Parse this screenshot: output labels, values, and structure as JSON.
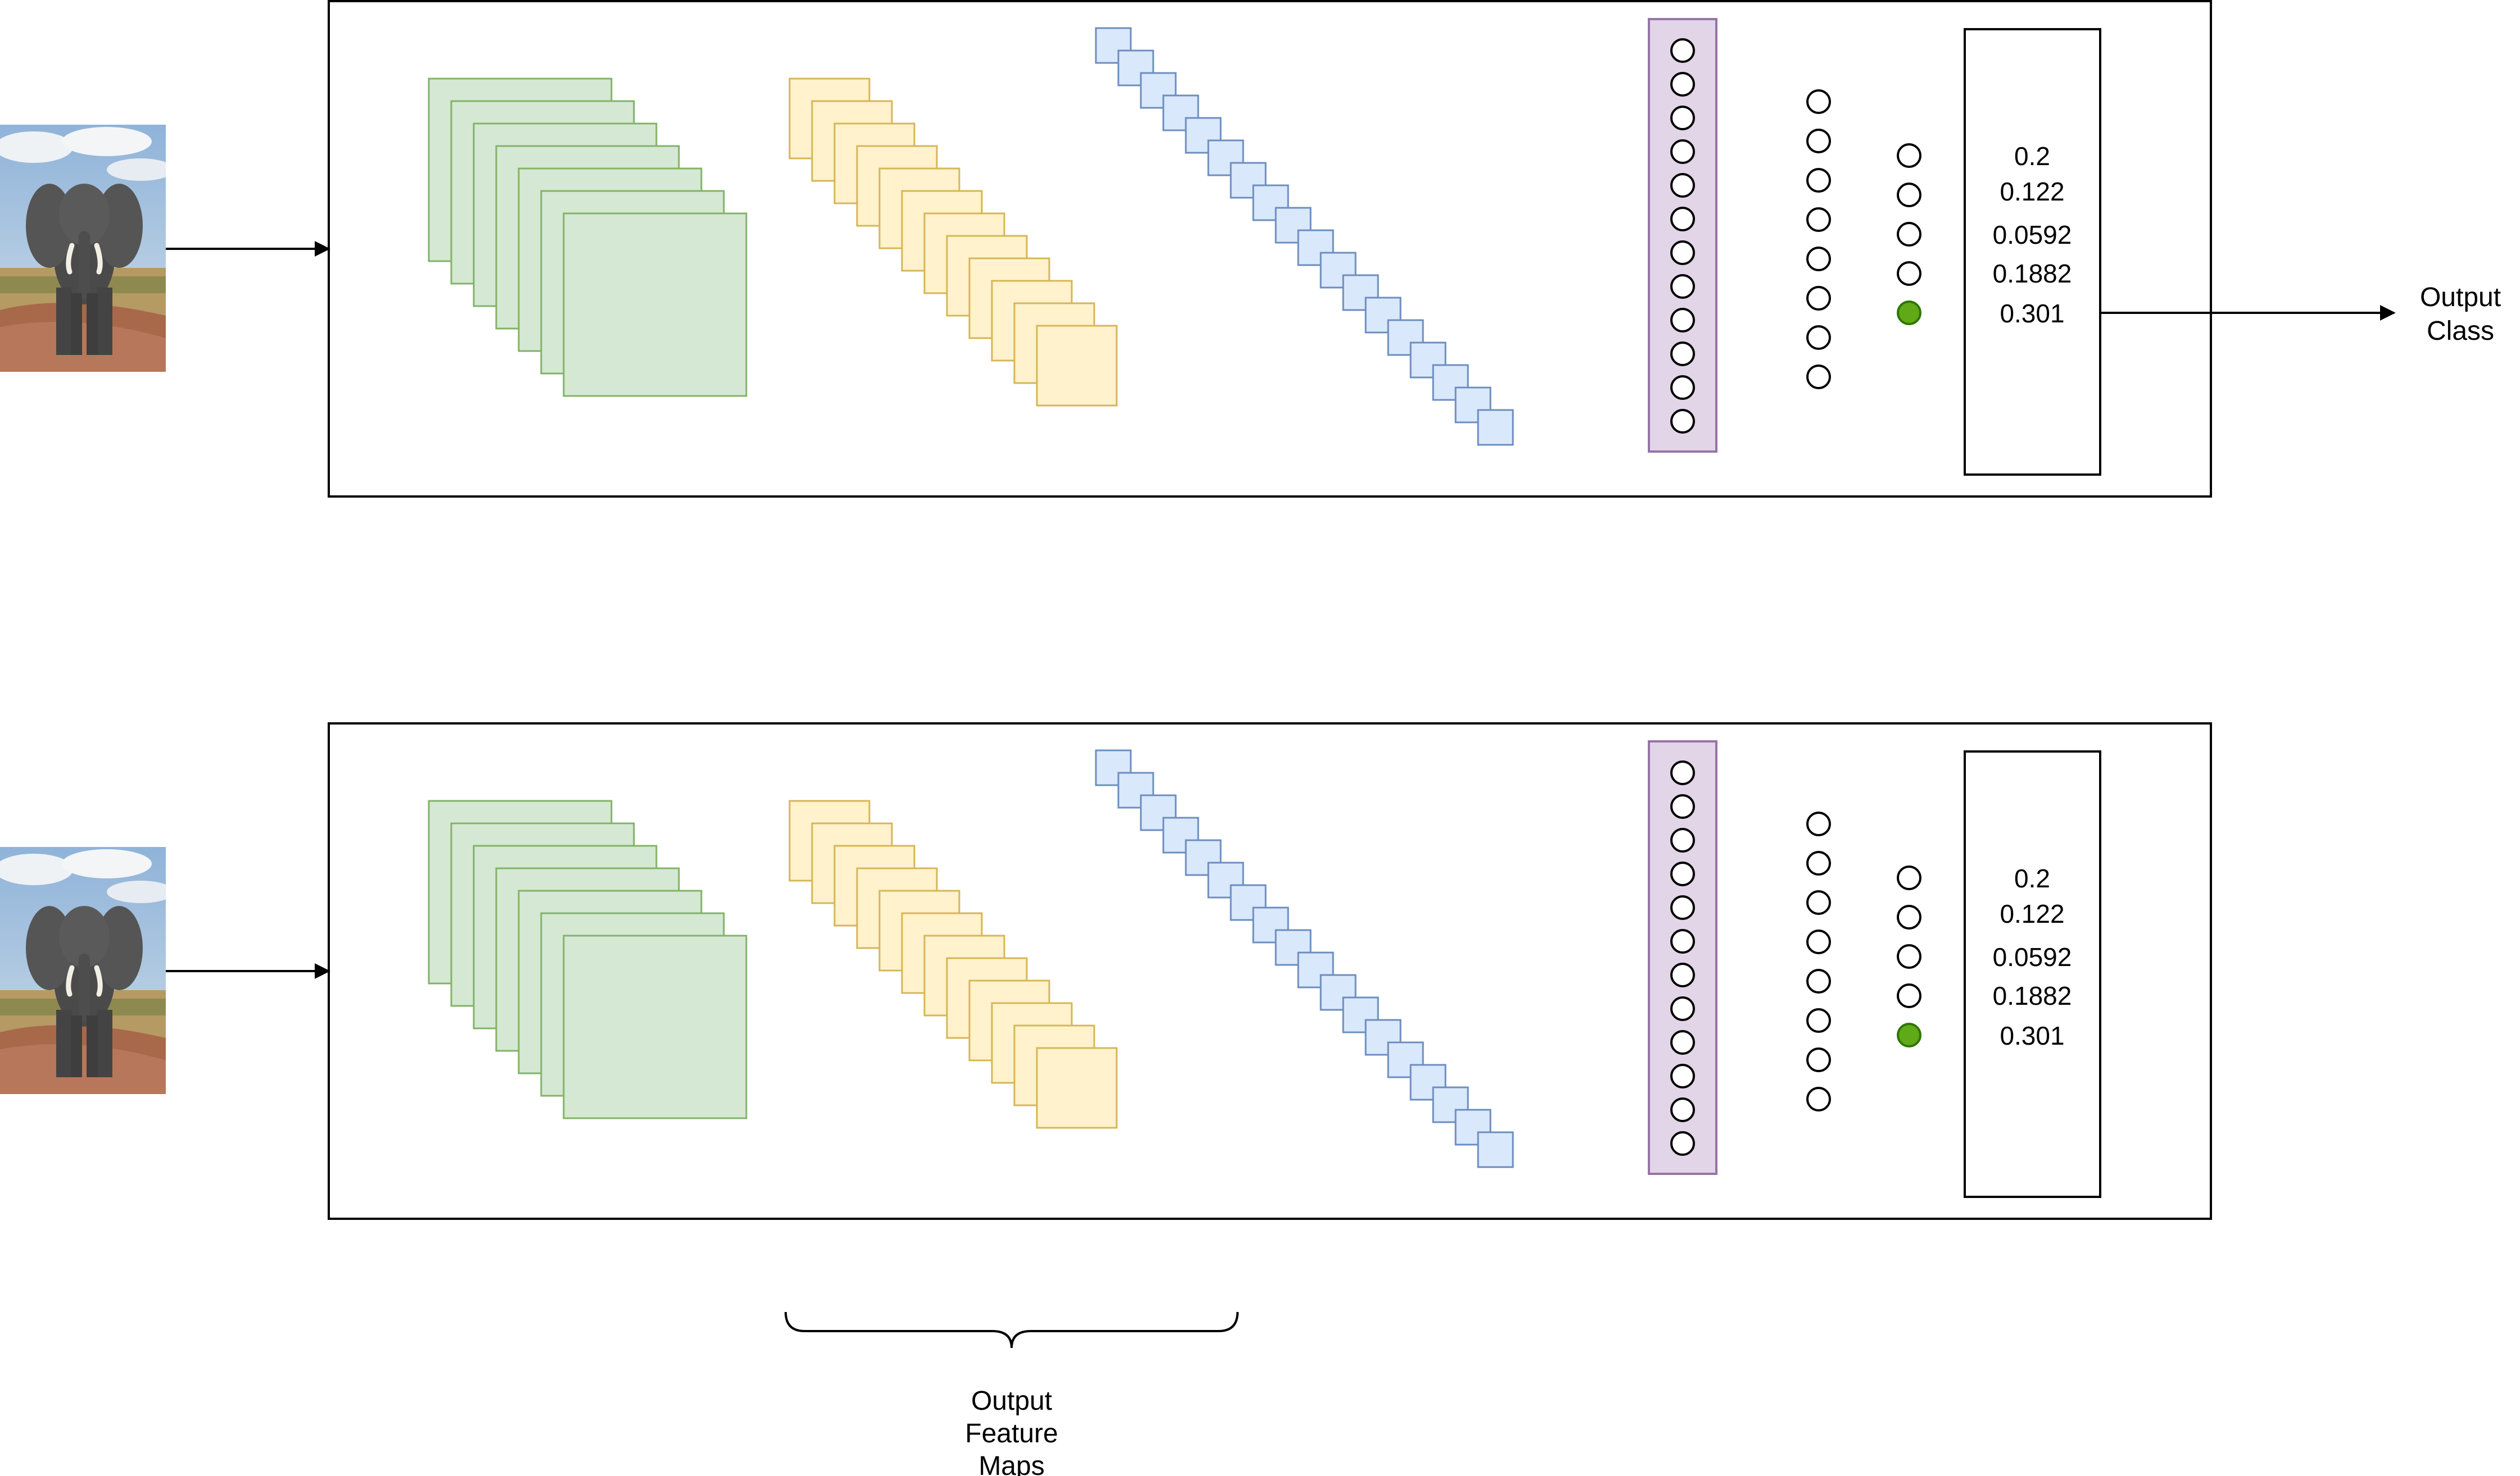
{
  "panels": [
    {
      "input_image": "elephant-photo",
      "output_values": [
        "0.2",
        "0.122",
        "0.0592",
        "0.1882",
        "0.301"
      ],
      "output_label": [
        "Output",
        "Class"
      ]
    },
    {
      "input_image": "elephant-photo",
      "output_values": [
        "0.2",
        "0.122",
        "0.0592",
        "0.1882",
        "0.301"
      ]
    }
  ],
  "brace_label": [
    "Output",
    "Feature",
    "Maps"
  ],
  "colors": {
    "conv_fill": "#d5e8d4",
    "conv_stroke": "#82b366",
    "pool_fill": "#fff2cc",
    "pool_stroke": "#d6b656",
    "flatten_fill": "#dae8fc",
    "flatten_stroke": "#6c8ebf",
    "dense_box_fill": "#e1d5e7",
    "dense_box_stroke": "#9673a6",
    "active_neuron": "#60a917",
    "line": "#000000"
  },
  "structure": {
    "conv_maps": 7,
    "pool_maps": 12,
    "flatten_units": 18,
    "dense1_neurons": 12,
    "dense2_neurons": 8,
    "output_neurons": 5,
    "active_output_index": 4
  }
}
